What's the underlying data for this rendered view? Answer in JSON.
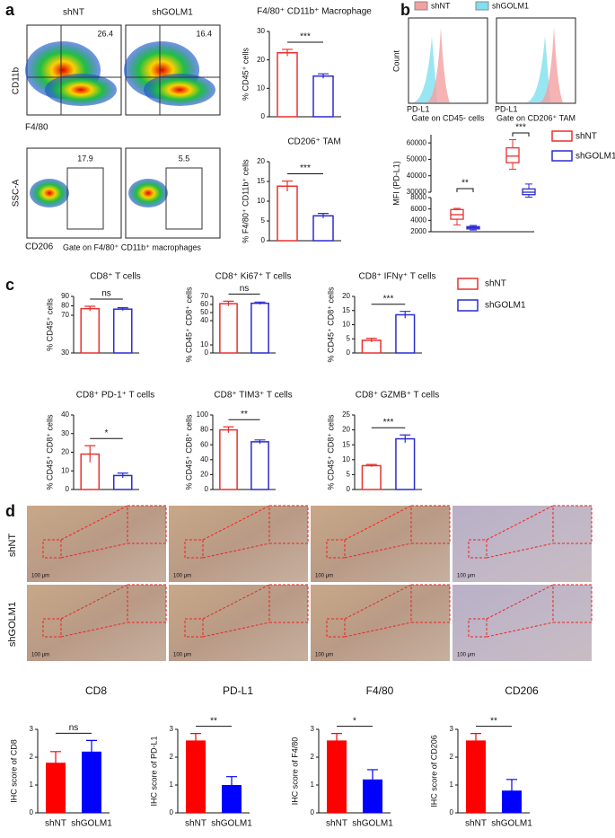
{
  "panels": {
    "a": "a",
    "b": "b",
    "c": "c",
    "d": "d"
  },
  "flow": {
    "samples": [
      "shNT",
      "shGOLM1"
    ],
    "top_values": [
      26.4,
      16.4
    ],
    "bottom_values": [
      17.9,
      5.5
    ],
    "top_y": "CD11b",
    "top_x": "F4/80",
    "bottom_y": "SSC-A",
    "bottom_x": "CD206",
    "gate": "Gate on F4/80⁺ CD11b⁺ macrophages"
  },
  "histogram": {
    "legend": [
      {
        "name": "shNT",
        "color": "#f4a0a0"
      },
      {
        "name": "shGOLM1",
        "color": "#7fe0f0"
      }
    ],
    "y_label": "Count",
    "x_label": "PD-L1",
    "gates": [
      "Gate on CD45- cells",
      "Gate on CD206⁺ TAM"
    ]
  },
  "legend_c": [
    {
      "name": "shNT",
      "color": "#e8312f"
    },
    {
      "name": "shGOLM1",
      "color": "#2b2bd0"
    }
  ],
  "ihc": {
    "rows": [
      "shNT",
      "shGOLM1"
    ],
    "scale": "100 μm",
    "columns": [
      "CD8",
      "PD-L1",
      "F4/80",
      "CD206"
    ]
  },
  "chart_data": [
    {
      "type": "bar",
      "style": "outline",
      "title": "F4/80⁺ CD11b⁺ Macrophage",
      "y_label": "% CD45⁺ cells",
      "values": [
        22.5,
        14.3
      ],
      "errors": [
        1.2,
        0.8
      ],
      "colors": [
        "#e8312f",
        "#2b2bd0"
      ],
      "ylim": [
        0,
        30
      ],
      "yticks": [
        0,
        10,
        20,
        30
      ],
      "significance": "***"
    },
    {
      "type": "bar",
      "style": "outline",
      "title": "CD206⁺ TAM",
      "y_label": "% F4/80⁺ CD11b⁺ cells",
      "values": [
        13.8,
        6.3
      ],
      "errors": [
        1.3,
        0.6
      ],
      "colors": [
        "#e8312f",
        "#2b2bd0"
      ],
      "ylim": [
        0,
        20
      ],
      "yticks": [
        0,
        5,
        10,
        15,
        20
      ],
      "significance": "***"
    },
    {
      "type": "box",
      "y_label": "MFI (PD-L1)",
      "series": [
        {
          "name": "shNT",
          "color": "#e8312f",
          "boxes": [
            [
              3200,
              4200,
              5000,
              5900,
              6100
            ],
            [
              44000,
              48000,
              52000,
              57000,
              62000
            ]
          ]
        },
        {
          "name": "shGOLM1",
          "color": "#2b2bd0",
          "boxes": [
            [
              2300,
              2500,
              2700,
              2900,
              3100
            ],
            [
              27000,
              28500,
              30000,
              32000,
              35000
            ]
          ]
        }
      ],
      "ylim": [
        2000,
        8000
      ],
      "yticks": [
        2000,
        4000,
        6000,
        8000
      ],
      "ylim_upper": [
        30000,
        65000
      ],
      "yticks_upper": [
        30000,
        40000,
        50000,
        60000
      ],
      "significance": [
        "**",
        "***"
      ]
    },
    {
      "type": "bar",
      "style": "outline",
      "title": "CD8⁺ T cells",
      "y_label": "% CD45⁺ cells",
      "values": [
        77,
        76.5
      ],
      "errors": [
        2.5,
        1.5
      ],
      "colors": [
        "#e8312f",
        "#2b2bd0"
      ],
      "ylim": [
        30,
        90
      ],
      "yticks": [
        30,
        70,
        80,
        90
      ],
      "significance": "ns"
    },
    {
      "type": "bar",
      "style": "outline",
      "title": "CD8⁺ Ki67⁺ T cells",
      "y_label": "% CD45⁺ CD8⁺ cells",
      "values": [
        61,
        61.5
      ],
      "errors": [
        3,
        1.5
      ],
      "colors": [
        "#e8312f",
        "#2b2bd0"
      ],
      "ylim": [
        0,
        70
      ],
      "yticks": [
        0,
        10,
        40,
        50,
        60,
        70
      ],
      "significance": "ns"
    },
    {
      "type": "bar",
      "style": "outline",
      "title": "CD8⁺ IFNγ⁺ T cells",
      "y_label": "% CD45⁺ CD8⁺ cells",
      "values": [
        4.5,
        13.5
      ],
      "errors": [
        0.7,
        1.2
      ],
      "colors": [
        "#e8312f",
        "#2b2bd0"
      ],
      "ylim": [
        0,
        20
      ],
      "yticks": [
        0,
        5,
        10,
        15,
        20
      ],
      "significance": "***"
    },
    {
      "type": "bar",
      "style": "outline",
      "title": "CD8⁺ PD-1⁺ T cells",
      "y_label": "% CD45⁺ CD8⁺ cells",
      "values": [
        19,
        7.5
      ],
      "errors": [
        4.5,
        1.3
      ],
      "colors": [
        "#e8312f",
        "#2b2bd0"
      ],
      "ylim": [
        0,
        40
      ],
      "yticks": [
        0,
        10,
        20,
        30,
        40
      ],
      "significance": "*"
    },
    {
      "type": "bar",
      "style": "outline",
      "title": "CD8⁺ TIM3⁺ T cells",
      "y_label": "% CD45⁺ CD8⁺ cells",
      "values": [
        80,
        64
      ],
      "errors": [
        4,
        2.5
      ],
      "colors": [
        "#e8312f",
        "#2b2bd0"
      ],
      "ylim": [
        0,
        100
      ],
      "yticks": [
        0,
        20,
        40,
        60,
        80,
        100
      ],
      "significance": "**"
    },
    {
      "type": "bar",
      "style": "outline",
      "title": "CD8⁺ GZMB⁺ T cells",
      "y_label": "% CD45⁺ CD8⁺ cells",
      "values": [
        8,
        17
      ],
      "errors": [
        0.4,
        1.3
      ],
      "colors": [
        "#e8312f",
        "#2b2bd0"
      ],
      "ylim": [
        0,
        25
      ],
      "yticks": [
        0,
        5,
        10,
        15,
        20,
        25
      ],
      "significance": "***"
    },
    {
      "type": "bar",
      "style": "filled",
      "y_label": "IHC score of CD8",
      "categories": [
        "shNT",
        "shGOLM1"
      ],
      "values": [
        1.8,
        2.2
      ],
      "errors": [
        0.4,
        0.4
      ],
      "colors": [
        "#ff0000",
        "#0000ff"
      ],
      "ylim": [
        0,
        3
      ],
      "yticks": [
        0,
        1,
        2,
        3
      ],
      "significance": "ns"
    },
    {
      "type": "bar",
      "style": "filled",
      "y_label": "IHC score of PD-L1",
      "categories": [
        "shNT",
        "shGOLM1"
      ],
      "values": [
        2.6,
        1.0
      ],
      "errors": [
        0.25,
        0.3
      ],
      "colors": [
        "#ff0000",
        "#0000ff"
      ],
      "ylim": [
        0,
        3
      ],
      "yticks": [
        0,
        1,
        2,
        3
      ],
      "significance": "**"
    },
    {
      "type": "bar",
      "style": "filled",
      "y_label": "IHC score of F4/80",
      "categories": [
        "shNT",
        "shGOLM1"
      ],
      "values": [
        2.6,
        1.2
      ],
      "errors": [
        0.25,
        0.35
      ],
      "colors": [
        "#ff0000",
        "#0000ff"
      ],
      "ylim": [
        0,
        3
      ],
      "yticks": [
        0,
        1,
        2,
        3
      ],
      "significance": "*"
    },
    {
      "type": "bar",
      "style": "filled",
      "y_label": "IHC score of CD206",
      "categories": [
        "shNT",
        "shGOLM1"
      ],
      "values": [
        2.6,
        0.8
      ],
      "errors": [
        0.25,
        0.4
      ],
      "colors": [
        "#ff0000",
        "#0000ff"
      ],
      "ylim": [
        0,
        3
      ],
      "yticks": [
        0,
        1,
        2,
        3
      ],
      "significance": "**"
    }
  ]
}
